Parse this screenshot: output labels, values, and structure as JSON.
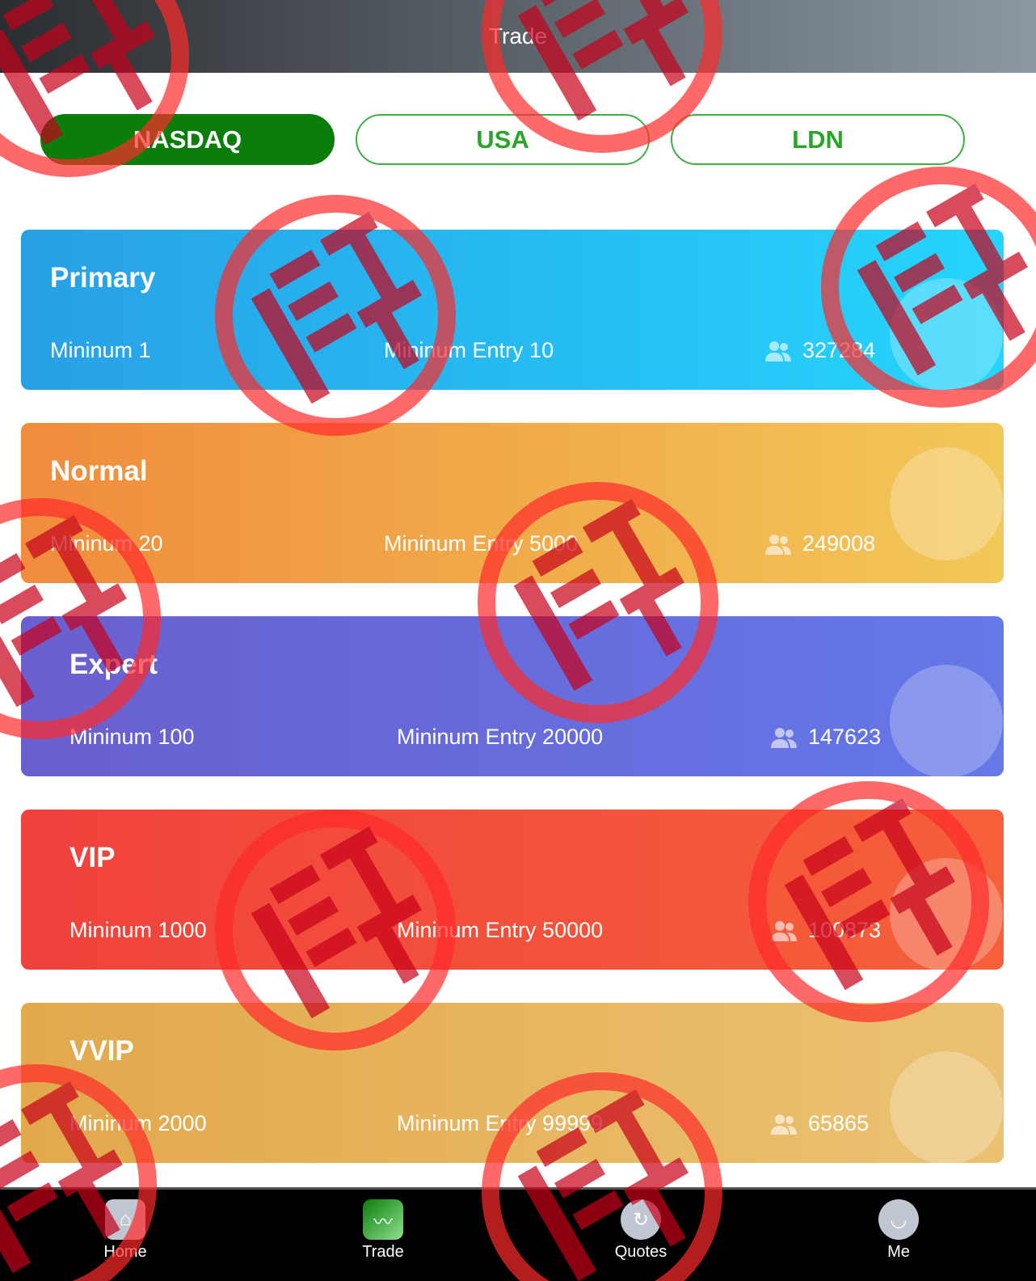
{
  "header": {
    "title": "Trade"
  },
  "tabs": [
    {
      "label": "NASDAQ",
      "active": true
    },
    {
      "label": "USA",
      "active": false
    },
    {
      "label": "LDN",
      "active": false
    }
  ],
  "cards": [
    {
      "title": "Primary",
      "minimum": "Mininum 1",
      "entry": "Mininum Entry 10",
      "count": "327284",
      "colors": [
        "#28a0e6",
        "#25d5fc"
      ]
    },
    {
      "title": "Normal",
      "minimum": "Mininum 20",
      "entry": "Mininum Entry 5000",
      "count": "249008",
      "colors": [
        "#f08c3c",
        "#f2c858"
      ]
    },
    {
      "title": "Expert",
      "minimum": "Mininum 100",
      "entry": "Mininum Entry 20000",
      "count": "147623",
      "colors": [
        "#6a5fcf",
        "#6478e8"
      ]
    },
    {
      "title": "VIP",
      "minimum": "Mininum 1000",
      "entry": "Mininum Entry 50000",
      "count": "100873",
      "colors": [
        "#f0413c",
        "#f5603a"
      ]
    },
    {
      "title": "VVIP",
      "minimum": "Mininum 2000",
      "entry": "Mininum Entry 99999",
      "count": "65865",
      "colors": [
        "#e2a84c",
        "#ebc272"
      ]
    }
  ],
  "nav": [
    {
      "label": "Home",
      "icon": "home-icon"
    },
    {
      "label": "Trade",
      "icon": "trade-chart-icon"
    },
    {
      "label": "Quotes",
      "icon": "quotes-icon"
    },
    {
      "label": "Me",
      "icon": "me-icon"
    }
  ],
  "watermark": {
    "text": "假",
    "color": "#ff2a2a"
  }
}
